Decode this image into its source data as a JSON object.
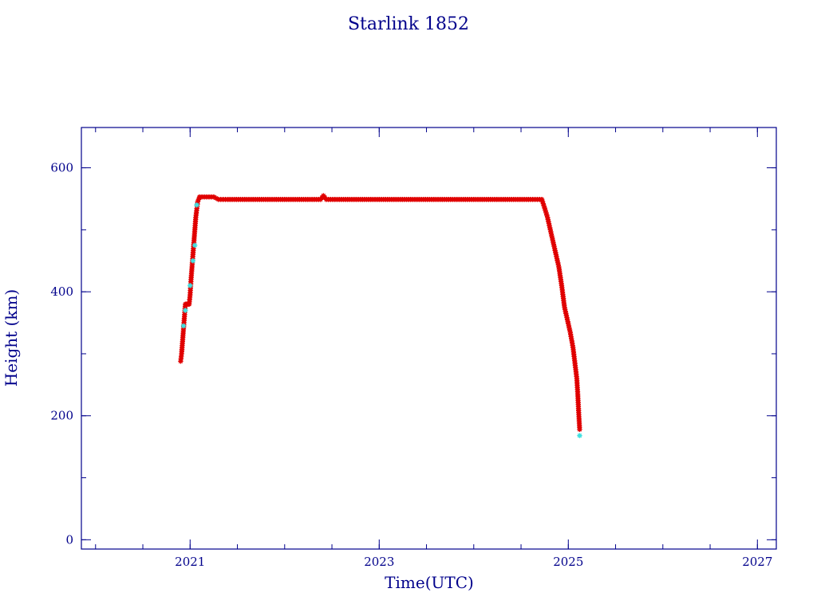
{
  "chart_data": {
    "type": "scatter",
    "title": "Starlink 1852",
    "xlabel": "Time(UTC)",
    "ylabel": "Height (km)",
    "xlim": [
      2019.85,
      2027.2
    ],
    "ylim": [
      -15,
      665
    ],
    "x_major_ticks": [
      2021,
      2023,
      2025,
      2027
    ],
    "x_minor_step": 0.5,
    "y_major_ticks": [
      0,
      200,
      400,
      600
    ],
    "y_minor_step": 100,
    "grid": false,
    "colors": {
      "axes": "#00008b",
      "series_primary": "#e00000",
      "series_secondary": "#40e0e0"
    },
    "series": [
      {
        "marker": "star",
        "color": "#e00000",
        "x": [
          2020.9,
          2020.91,
          2020.92,
          2020.93,
          2020.94,
          2020.95,
          2020.96,
          2020.97,
          2020.98,
          2020.99,
          2021.0,
          2021.01,
          2021.02,
          2021.03,
          2021.04,
          2021.05,
          2021.06,
          2021.08,
          2021.1,
          2021.15,
          2021.2,
          2021.25,
          2021.3,
          2021.4,
          2021.6,
          2021.8,
          2022.0,
          2022.2,
          2022.38,
          2022.41,
          2022.44,
          2022.6,
          2022.8,
          2023.0,
          2023.2,
          2023.4,
          2023.6,
          2023.8,
          2024.0,
          2024.2,
          2024.4,
          2024.6,
          2024.72,
          2024.75,
          2024.78,
          2024.81,
          2024.84,
          2024.87,
          2024.9,
          2024.93,
          2024.96,
          2024.99,
          2025.02,
          2025.05,
          2025.07,
          2025.09,
          2025.1,
          2025.11,
          2025.12
        ],
        "y": [
          288,
          300,
          320,
          340,
          360,
          380,
          380,
          380,
          380,
          380,
          395,
          420,
          440,
          460,
          480,
          500,
          520,
          545,
          553,
          553,
          553,
          553,
          549,
          549,
          549,
          549,
          549,
          549,
          549,
          555,
          549,
          549,
          549,
          549,
          549,
          549,
          549,
          549,
          549,
          549,
          549,
          549,
          549,
          535,
          520,
          500,
          480,
          460,
          440,
          410,
          375,
          355,
          335,
          310,
          285,
          260,
          235,
          205,
          178
        ]
      },
      {
        "marker": "star",
        "color": "#40e0e0",
        "x": [
          2020.93,
          2020.95,
          2021.0,
          2021.03,
          2021.05,
          2021.07,
          2025.12
        ],
        "y": [
          345,
          370,
          410,
          450,
          475,
          540,
          168
        ]
      }
    ]
  }
}
